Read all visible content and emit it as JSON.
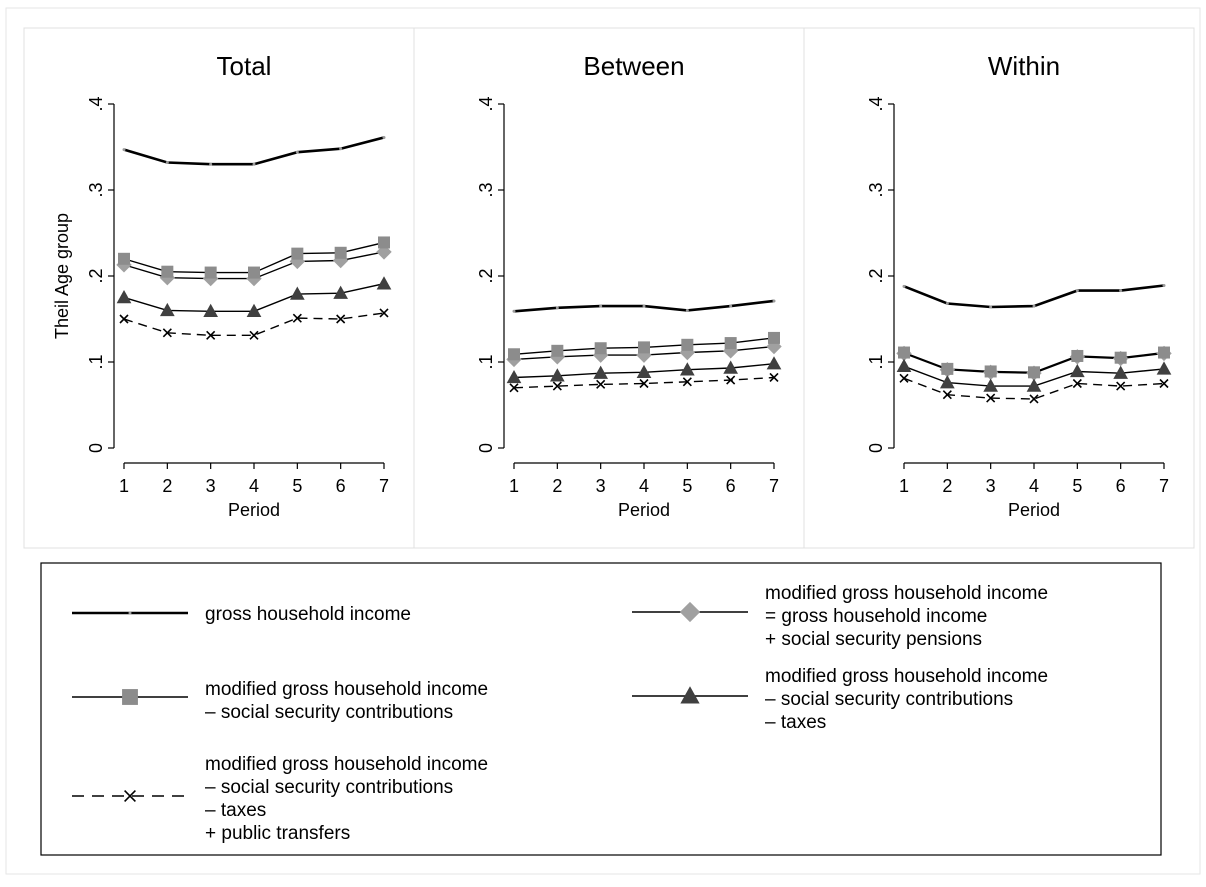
{
  "chart_data": {
    "type": "line",
    "ylabel": "Theil Age group",
    "xlabel": "Period",
    "x": [
      1,
      2,
      3,
      4,
      5,
      6,
      7
    ],
    "ylim": [
      0,
      0.4
    ],
    "yticks": [
      0,
      0.1,
      0.2,
      0.3,
      0.4
    ],
    "ytick_labels": [
      "0",
      ".1",
      ".2",
      ".3",
      ".4"
    ],
    "grid": false,
    "legend_position": "bottom",
    "panels": [
      {
        "title": "Total",
        "series": [
          {
            "name": "gross household income",
            "values": [
              0.347,
              0.332,
              0.33,
              0.33,
              0.344,
              0.348,
              0.361
            ]
          },
          {
            "name": "modified gross household income\n= gross household income\n+ social security pensions",
            "values": [
              0.213,
              0.198,
              0.197,
              0.197,
              0.217,
              0.218,
              0.228
            ]
          },
          {
            "name": "modified gross household income\n– social security contributions",
            "values": [
              0.22,
              0.205,
              0.204,
              0.204,
              0.226,
              0.227,
              0.239
            ]
          },
          {
            "name": "modified gross household income\n– social security contributions\n– taxes",
            "values": [
              0.175,
              0.16,
              0.159,
              0.159,
              0.179,
              0.18,
              0.191
            ]
          },
          {
            "name": "modified gross household income\n– social security contributions\n– taxes\n+ public transfers",
            "values": [
              0.15,
              0.134,
              0.131,
              0.131,
              0.151,
              0.15,
              0.157
            ]
          }
        ]
      },
      {
        "title": "Between",
        "series": [
          {
            "name": "gross household income",
            "values": [
              0.159,
              0.163,
              0.165,
              0.165,
              0.16,
              0.165,
              0.171
            ]
          },
          {
            "name": "modified gross household income\n= gross household income\n+ social security pensions",
            "values": [
              0.103,
              0.106,
              0.108,
              0.108,
              0.111,
              0.113,
              0.118
            ]
          },
          {
            "name": "modified gross household income\n– social security contributions",
            "values": [
              0.109,
              0.113,
              0.116,
              0.117,
              0.12,
              0.122,
              0.128
            ]
          },
          {
            "name": "modified gross household income\n– social security contributions\n– taxes",
            "values": [
              0.082,
              0.084,
              0.087,
              0.088,
              0.091,
              0.093,
              0.098
            ]
          },
          {
            "name": "modified gross household income\n– social security contributions\n– taxes\n+ public transfers",
            "values": [
              0.07,
              0.072,
              0.074,
              0.075,
              0.077,
              0.079,
              0.082
            ]
          }
        ]
      },
      {
        "title": "Within",
        "series": [
          {
            "name": "gross household income",
            "values": [
              0.188,
              0.168,
              0.164,
              0.165,
              0.183,
              0.183,
              0.189
            ]
          },
          {
            "name": "modified gross household income\n= gross household income\n+ social security pensions",
            "values": [
              0.11,
              0.091,
              0.088,
              0.087,
              0.106,
              0.104,
              0.11
            ]
          },
          {
            "name": "modified gross household income\n– social security contributions",
            "values": [
              0.111,
              0.092,
              0.089,
              0.088,
              0.107,
              0.105,
              0.111
            ]
          },
          {
            "name": "modified gross household income\n– social security contributions\n– taxes",
            "values": [
              0.095,
              0.076,
              0.072,
              0.072,
              0.089,
              0.087,
              0.092
            ]
          },
          {
            "name": "modified gross household income\n– social security contributions\n– taxes\n+ public transfers",
            "values": [
              0.081,
              0.062,
              0.058,
              0.057,
              0.075,
              0.072,
              0.075
            ]
          }
        ]
      }
    ],
    "legend": [
      {
        "lines": [
          "gross household income"
        ],
        "marker": "none",
        "dash": false,
        "stroke": "heavy",
        "color": "#000000"
      },
      {
        "lines": [
          "modified gross household income",
          "= gross household income",
          "+ social security pensions"
        ],
        "marker": "diamond",
        "dash": false,
        "stroke": "thin",
        "color": "#a0a0a0"
      },
      {
        "lines": [
          "modified gross household income",
          "– social security contributions"
        ],
        "marker": "square",
        "dash": false,
        "stroke": "thin",
        "color": "#8c8c8c"
      },
      {
        "lines": [
          "modified gross household income",
          "– social security contributions",
          "– taxes"
        ],
        "marker": "triangle",
        "dash": false,
        "stroke": "thin",
        "color": "#404040"
      },
      {
        "lines": [
          "modified gross household income",
          "– social security contributions",
          "– taxes",
          "+ public transfers"
        ],
        "marker": "x",
        "dash": true,
        "stroke": "thin",
        "color": "#000000"
      }
    ]
  }
}
